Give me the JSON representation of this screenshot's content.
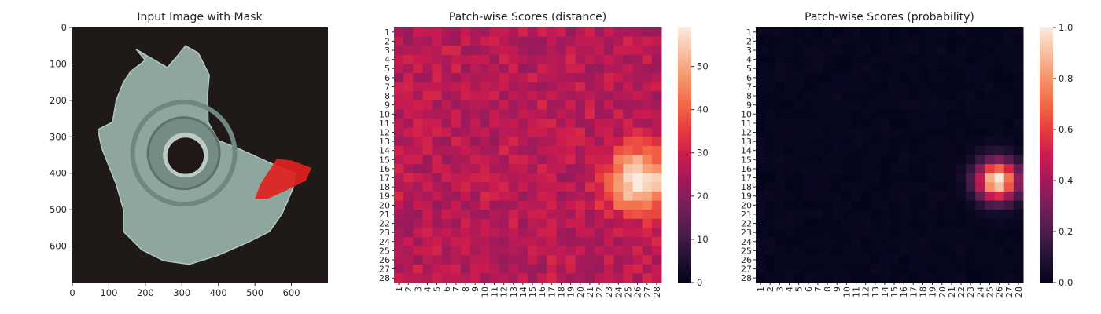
{
  "chart_data": [
    {
      "type": "image",
      "title": "Input Image with Mask",
      "xlim": [
        0,
        700
      ],
      "ylim": [
        700,
        0
      ],
      "xticks": [
        "0",
        "100",
        "200",
        "300",
        "400",
        "500",
        "600"
      ],
      "yticks": [
        "0",
        "100",
        "200",
        "300",
        "400",
        "500",
        "600"
      ],
      "background_color": "#1f1918",
      "object_color": "#8fa69f",
      "mask_color": "#e0221f"
    },
    {
      "type": "heatmap",
      "title": "Patch-wise Scores (distance)",
      "rows": 28,
      "cols": 28,
      "row_labels": [
        "1",
        "2",
        "3",
        "4",
        "5",
        "6",
        "7",
        "8",
        "9",
        "10",
        "11",
        "12",
        "13",
        "14",
        "15",
        "16",
        "17",
        "18",
        "19",
        "20",
        "21",
        "22",
        "23",
        "24",
        "25",
        "26",
        "27",
        "28"
      ],
      "col_labels": [
        "1",
        "2",
        "3",
        "4",
        "5",
        "6",
        "7",
        "8",
        "9",
        "10",
        "11",
        "12",
        "13",
        "14",
        "15",
        "16",
        "17",
        "18",
        "19",
        "20",
        "21",
        "22",
        "23",
        "24",
        "25",
        "26",
        "27",
        "28"
      ],
      "colorbar": {
        "min": 0,
        "max": 59,
        "ticks": [
          "0",
          "10",
          "20",
          "30",
          "40",
          "50"
        ]
      },
      "baseline": 27,
      "hotspot": {
        "row": 17.3,
        "col": 26.2,
        "peak": 59
      },
      "colormap": "rocket"
    },
    {
      "type": "heatmap",
      "title": "Patch-wise Scores (probability)",
      "rows": 28,
      "cols": 28,
      "row_labels": [
        "1",
        "2",
        "3",
        "4",
        "5",
        "6",
        "7",
        "8",
        "9",
        "10",
        "11",
        "12",
        "13",
        "14",
        "15",
        "16",
        "17",
        "18",
        "19",
        "20",
        "21",
        "22",
        "23",
        "24",
        "25",
        "26",
        "27",
        "28"
      ],
      "col_labels": [
        "1",
        "2",
        "3",
        "4",
        "5",
        "6",
        "7",
        "8",
        "9",
        "10",
        "11",
        "12",
        "13",
        "14",
        "15",
        "16",
        "17",
        "18",
        "19",
        "20",
        "21",
        "22",
        "23",
        "24",
        "25",
        "26",
        "27",
        "28"
      ],
      "colorbar": {
        "min": 0.0,
        "max": 1.0,
        "ticks": [
          "0.0",
          "0.2",
          "0.4",
          "0.6",
          "0.8",
          "1.0"
        ]
      },
      "baseline": 0.0,
      "hotspot": {
        "row": 17.3,
        "col": 25.8,
        "peak": 1.0
      },
      "colormap": "rocket"
    }
  ]
}
